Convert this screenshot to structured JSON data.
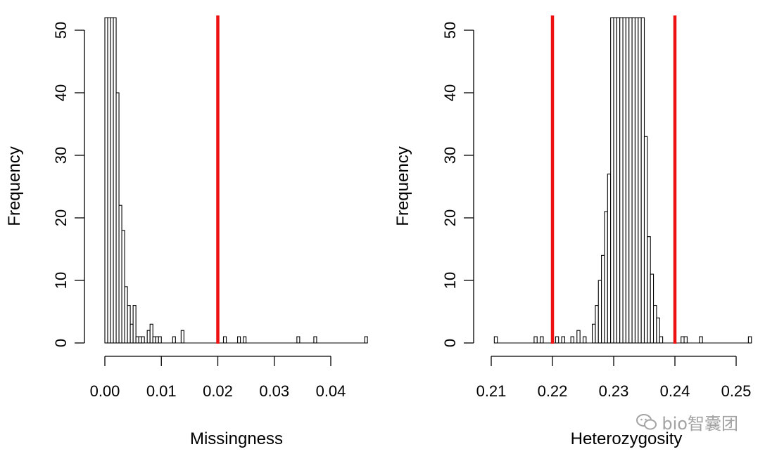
{
  "colors": {
    "threshold": "#ee1111",
    "bars": "#000000",
    "background": "#ffffff"
  },
  "watermark": {
    "text": "bio智囊团",
    "icon": "chat-bubbles-icon"
  },
  "chart_data": [
    {
      "type": "histogram",
      "title": "",
      "xlabel": "Missingness",
      "ylabel": "Frequency",
      "xlim": [
        0,
        0.047
      ],
      "ylim": [
        0,
        52
      ],
      "xticks": [
        0.0,
        0.01,
        0.02,
        0.03,
        0.04
      ],
      "xtick_labels": [
        "0.00",
        "0.01",
        "0.02",
        "0.03",
        "0.04"
      ],
      "yticks": [
        0,
        10,
        20,
        30,
        40,
        50
      ],
      "ytick_labels": [
        "0",
        "10",
        "20",
        "30",
        "40",
        "50"
      ],
      "bin_width": 0.0005,
      "bins_start": 0,
      "counts": [
        52,
        52,
        52,
        52,
        40,
        22,
        18,
        9,
        6,
        3,
        6,
        1,
        1,
        1,
        0,
        2,
        3,
        1,
        1,
        1,
        0,
        0,
        0,
        0,
        1,
        0,
        0,
        2,
        0,
        0,
        0,
        0,
        0,
        0,
        0,
        0,
        0,
        0,
        0,
        0,
        0,
        0,
        1,
        0,
        0,
        0,
        0,
        1,
        0,
        1,
        0,
        0,
        0,
        0,
        0,
        0,
        0,
        0,
        0,
        0,
        0,
        0,
        0,
        0,
        0,
        0,
        0,
        0,
        1,
        0,
        0,
        0,
        0,
        0,
        1,
        0,
        0,
        0,
        0,
        0,
        0,
        0,
        0,
        0,
        0,
        0,
        0,
        0,
        0,
        0,
        0,
        0,
        1
      ],
      "truncated_above_ylim": true,
      "thresholds": [
        0.02
      ],
      "grid": false,
      "legend": "none"
    },
    {
      "type": "histogram",
      "title": "",
      "xlabel": "Heterozygosity",
      "ylabel": "Frequency",
      "xlim": [
        0.21,
        0.2525
      ],
      "ylim": [
        0,
        52
      ],
      "xticks": [
        0.21,
        0.22,
        0.23,
        0.24,
        0.25
      ],
      "xtick_labels": [
        "0.21",
        "0.22",
        "0.23",
        "0.24",
        "0.25"
      ],
      "yticks": [
        0,
        10,
        20,
        30,
        40,
        50
      ],
      "ytick_labels": [
        "0",
        "10",
        "20",
        "30",
        "40",
        "50"
      ],
      "bin_width": 0.0005,
      "bins_start": 0.2105,
      "counts": [
        1,
        0,
        0,
        0,
        0,
        0,
        0,
        0,
        0,
        0,
        0,
        0,
        0,
        1,
        0,
        1,
        0,
        0,
        0,
        0,
        1,
        0,
        1,
        0,
        0,
        1,
        0,
        2,
        0,
        1,
        0,
        0,
        3,
        6,
        10,
        14,
        21,
        27,
        52,
        52,
        52,
        52,
        52,
        52,
        52,
        52,
        52,
        52,
        52,
        33,
        17,
        11,
        6,
        4,
        1,
        0,
        0,
        0,
        0,
        0,
        0,
        1,
        1,
        0,
        0,
        0,
        0,
        1,
        0,
        0,
        0,
        0,
        0,
        0,
        0,
        0,
        0,
        0,
        0,
        0,
        0,
        0,
        0,
        1
      ],
      "truncated_above_ylim": true,
      "thresholds": [
        0.22,
        0.24
      ],
      "grid": false,
      "legend": "none"
    }
  ]
}
